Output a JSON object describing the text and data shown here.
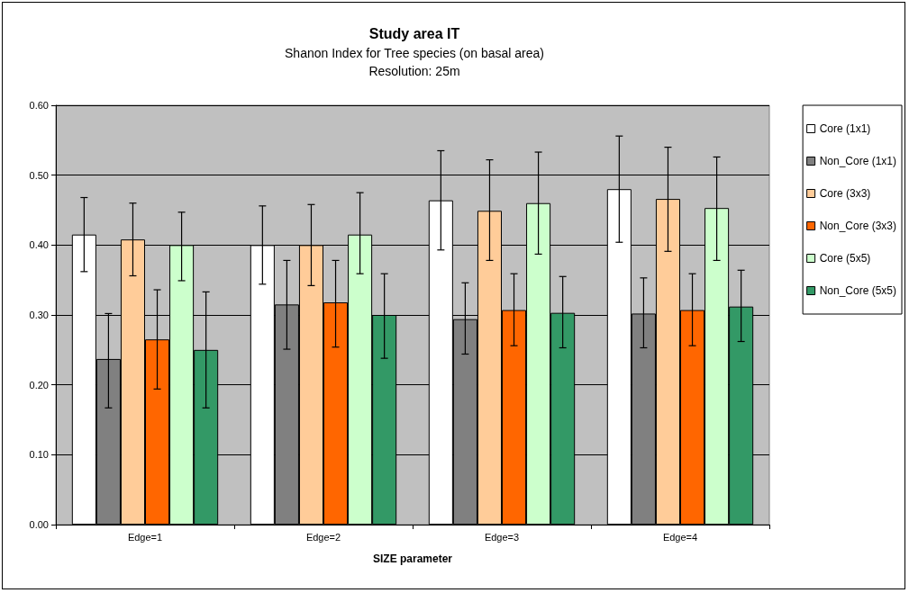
{
  "chart_data": {
    "type": "bar",
    "title": "Study area IT",
    "subtitle": "Shanon Index for Tree species (on basal area)\nResolution: 25m",
    "xlabel": "SIZE parameter",
    "categories": [
      "Edge=1",
      "Edge=2",
      "Edge=3",
      "Edge=4"
    ],
    "series": [
      {
        "name": "Core (1x1)",
        "color": "#ffffff",
        "values": [
          0.415,
          0.4,
          0.464,
          0.48
        ],
        "errors": [
          [
            0.362,
            0.468
          ],
          [
            0.344,
            0.456
          ],
          [
            0.393,
            0.535
          ],
          [
            0.404,
            0.556
          ]
        ]
      },
      {
        "name": "Non_Core (1x1)",
        "color": "#808080",
        "values": [
          0.237,
          0.315,
          0.294,
          0.302
        ],
        "errors": [
          [
            0.167,
            0.302
          ],
          [
            0.251,
            0.378
          ],
          [
            0.244,
            0.346
          ],
          [
            0.253,
            0.353
          ]
        ]
      },
      {
        "name": "Core (3x3)",
        "color": "#ffcc99",
        "values": [
          0.408,
          0.4,
          0.449,
          0.466
        ],
        "errors": [
          [
            0.356,
            0.46
          ],
          [
            0.342,
            0.458
          ],
          [
            0.378,
            0.522
          ],
          [
            0.391,
            0.54
          ]
        ]
      },
      {
        "name": "Non_Core (3x3)",
        "color": "#ff6600",
        "values": [
          0.265,
          0.318,
          0.307,
          0.307
        ],
        "errors": [
          [
            0.194,
            0.336
          ],
          [
            0.254,
            0.378
          ],
          [
            0.256,
            0.359
          ],
          [
            0.256,
            0.359
          ]
        ]
      },
      {
        "name": "Core (5x5)",
        "color": "#ccffcc",
        "values": [
          0.4,
          0.415,
          0.46,
          0.453
        ],
        "errors": [
          [
            0.349,
            0.447
          ],
          [
            0.359,
            0.475
          ],
          [
            0.387,
            0.533
          ],
          [
            0.378,
            0.526
          ]
        ]
      },
      {
        "name": "Non_Core (5x5)",
        "color": "#339966",
        "values": [
          0.25,
          0.3,
          0.303,
          0.312
        ],
        "errors": [
          [
            0.167,
            0.333
          ],
          [
            0.238,
            0.359
          ],
          [
            0.253,
            0.355
          ],
          [
            0.262,
            0.364
          ]
        ]
      }
    ],
    "ylim": [
      0,
      0.6
    ],
    "yticks": [
      {
        "value": 0,
        "label": "0.00"
      },
      {
        "value": 0.1,
        "label": "0.10"
      },
      {
        "value": 0.2,
        "label": "0.20"
      },
      {
        "value": 0.3,
        "label": "0.30"
      },
      {
        "value": 0.4,
        "label": "0.40"
      },
      {
        "value": 0.5,
        "label": "0.50"
      },
      {
        "value": 0.6,
        "label": "0.60"
      }
    ],
    "grid": "y",
    "legend": "right"
  }
}
